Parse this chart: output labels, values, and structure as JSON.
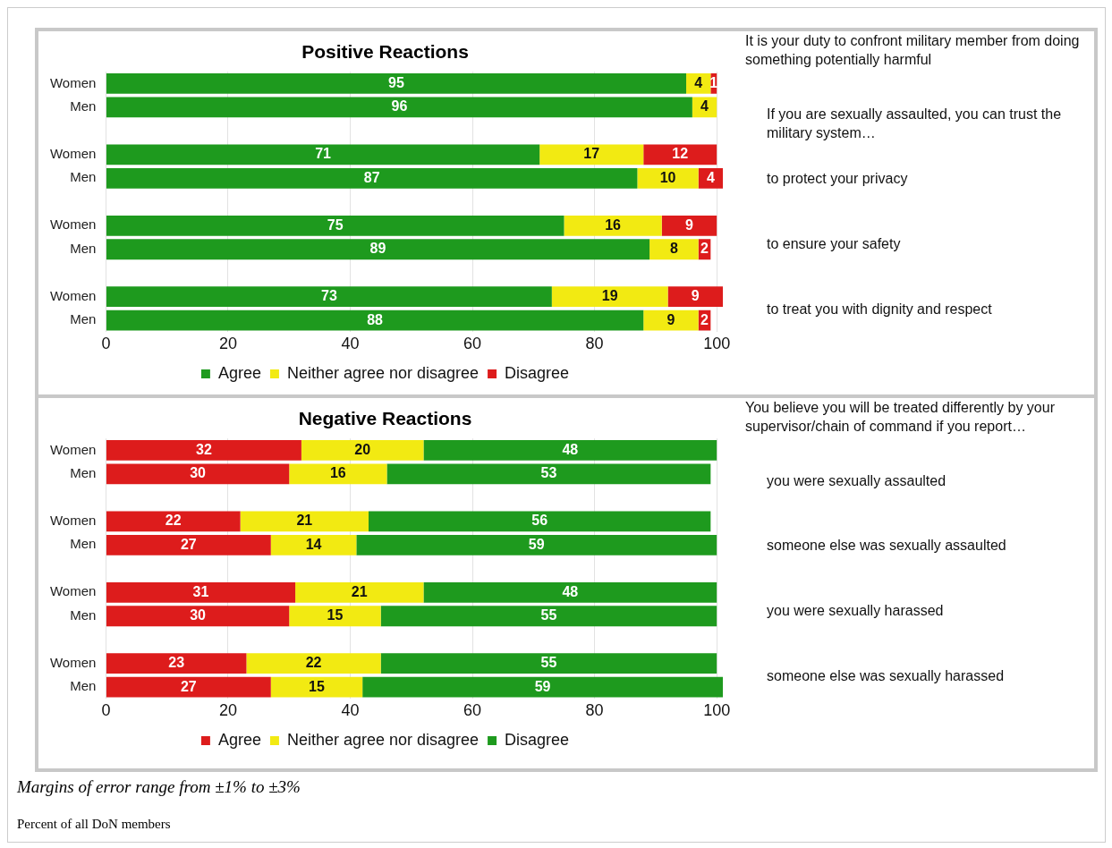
{
  "chart_data": [
    {
      "type": "bar",
      "orientation": "horizontal",
      "stacked": true,
      "title": "Positive Reactions",
      "categories": [
        "Women",
        "Men",
        null,
        "Women",
        "Men",
        null,
        "Women",
        "Men",
        null,
        "Women",
        "Men"
      ],
      "series": [
        {
          "name": "Agree",
          "color": "#1e9a1e",
          "values": [
            95,
            96,
            null,
            71,
            87,
            null,
            75,
            89,
            null,
            73,
            88
          ]
        },
        {
          "name": "Neither agree nor disagree",
          "color": "#f2ea12",
          "values": [
            4,
            4,
            null,
            17,
            10,
            null,
            16,
            8,
            null,
            19,
            9
          ]
        },
        {
          "name": "Disagree",
          "color": "#dd1c1c",
          "values": [
            1,
            null,
            null,
            12,
            4,
            null,
            9,
            2,
            null,
            9,
            2
          ]
        }
      ],
      "xlim": [
        0,
        101
      ],
      "xticks": [
        0,
        20,
        40,
        60,
        80,
        100
      ],
      "grid": "x",
      "legend": "bottom",
      "data_labels": true,
      "annotations": [
        "It is your duty to confront military member from doing something potentially harmful",
        "If you are sexually assaulted, you can trust the military system…",
        "to protect your privacy",
        "to ensure your safety",
        "to treat you with dignity and respect"
      ]
    },
    {
      "type": "bar",
      "orientation": "horizontal",
      "stacked": true,
      "title": "Negative Reactions",
      "categories": [
        "Women",
        "Men",
        null,
        "Women",
        "Men",
        null,
        "Women",
        "Men",
        null,
        "Women",
        "Men"
      ],
      "series": [
        {
          "name": "Agree",
          "color": "#dd1c1c",
          "values": [
            32,
            30,
            null,
            22,
            27,
            null,
            31,
            30,
            null,
            23,
            27
          ]
        },
        {
          "name": "Neither agree nor disagree",
          "color": "#f2ea12",
          "values": [
            20,
            16,
            null,
            21,
            14,
            null,
            21,
            15,
            null,
            22,
            15
          ]
        },
        {
          "name": "Disagree",
          "color": "#1e9a1e",
          "values": [
            48,
            53,
            null,
            56,
            59,
            null,
            48,
            55,
            null,
            55,
            59
          ]
        }
      ],
      "xlim": [
        0,
        101
      ],
      "xticks": [
        0,
        20,
        40,
        60,
        80,
        100
      ],
      "grid": "x",
      "legend": "bottom",
      "data_labels": true,
      "annotations": [
        "You believe you will be treated differently by your supervisor/chain of command if you report…",
        "you were sexually assaulted",
        "someone else was sexually assaulted",
        "you were sexually harassed",
        "someone else was sexually harassed"
      ]
    },
    {
      "type": "other",
      "annotations": [
        "Margins of error range from ±1% to ±3%",
        "Percent of all DoN members"
      ]
    }
  ]
}
